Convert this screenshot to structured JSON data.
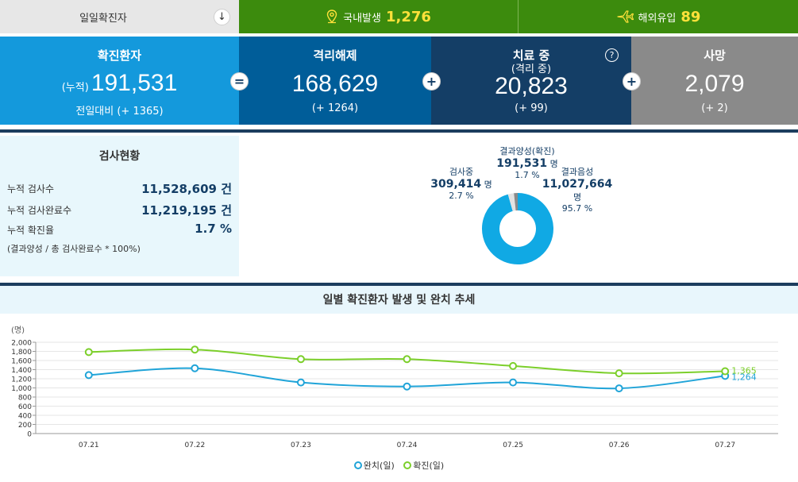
{
  "topbar": {
    "daily_label": "일일확진자",
    "arrow_icon": "↓",
    "domestic": {
      "label": "국내발생",
      "value": "1,276"
    },
    "overseas": {
      "label": "해외유입",
      "value": "89"
    }
  },
  "cards": {
    "confirmed": {
      "title": "확진환자",
      "prefix": "(누적)",
      "value": "191,531",
      "delta": "전일대비 (+ 1365)"
    },
    "released": {
      "title": "격리해제",
      "value": "168,629",
      "delta": "(+ 1264)"
    },
    "treating": {
      "title": "치료 중",
      "subtitle": "(격리 중)",
      "value": "20,823",
      "delta": "(+ 99)",
      "help": "?"
    },
    "deaths": {
      "title": "사망",
      "value": "2,079",
      "delta": "(+ 2)"
    },
    "ops": {
      "equals": "=",
      "plus": "+"
    }
  },
  "tests": {
    "title": "검사현황",
    "rows": [
      {
        "label": "누적 검사수",
        "value": "11,528,609 건"
      },
      {
        "label": "누적 검사완료수",
        "value": "11,219,195 건"
      },
      {
        "label": "누적 확진율",
        "value": "1.7 %"
      }
    ],
    "note": "(결과양성 / 총 검사완료수 * 100%)"
  },
  "donut": {
    "positive": {
      "label": "결과양성(확진)",
      "value": "191,531",
      "unit": "명",
      "pct": "1.7 %"
    },
    "testing": {
      "label": "검사중",
      "value": "309,414",
      "unit": "명",
      "pct": "2.7 %"
    },
    "negative": {
      "label": "결과음성",
      "value": "11,027,664",
      "unit": "명",
      "pct": "95.7 %"
    },
    "colors": {
      "negative": "#10a9e4",
      "testing": "#e3e3e3",
      "positive": "#8a8a8a"
    },
    "fractions": {
      "positive": 0.017,
      "testing": 0.027,
      "negative": 0.957
    }
  },
  "trend": {
    "title": "일별 확진환자 발생 및 완치 추세",
    "unit_label": "(명)",
    "legend": {
      "recovered": "완치(일)",
      "confirmed": "확진(일)"
    }
  },
  "chart_data": {
    "type": "line",
    "categories": [
      "07.21",
      "07.22",
      "07.23",
      "07.24",
      "07.25",
      "07.26",
      "07.27"
    ],
    "series": [
      {
        "name": "완치(일)",
        "color": "#20a4d8",
        "values": [
          1280,
          1430,
          1120,
          1030,
          1120,
          990,
          1264
        ]
      },
      {
        "name": "확진(일)",
        "color": "#7ccf2b",
        "values": [
          1785,
          1840,
          1630,
          1630,
          1480,
          1320,
          1365
        ]
      }
    ],
    "end_labels": {
      "recovered": "1,264",
      "confirmed": "1,365"
    },
    "yticks": [
      "0",
      "200",
      "400",
      "600",
      "800",
      "1,000",
      "1,200",
      "1,400",
      "1,600",
      "1,800",
      "2,000"
    ],
    "ylim": [
      0,
      2000
    ],
    "ylabel": "(명)",
    "grid": true
  }
}
